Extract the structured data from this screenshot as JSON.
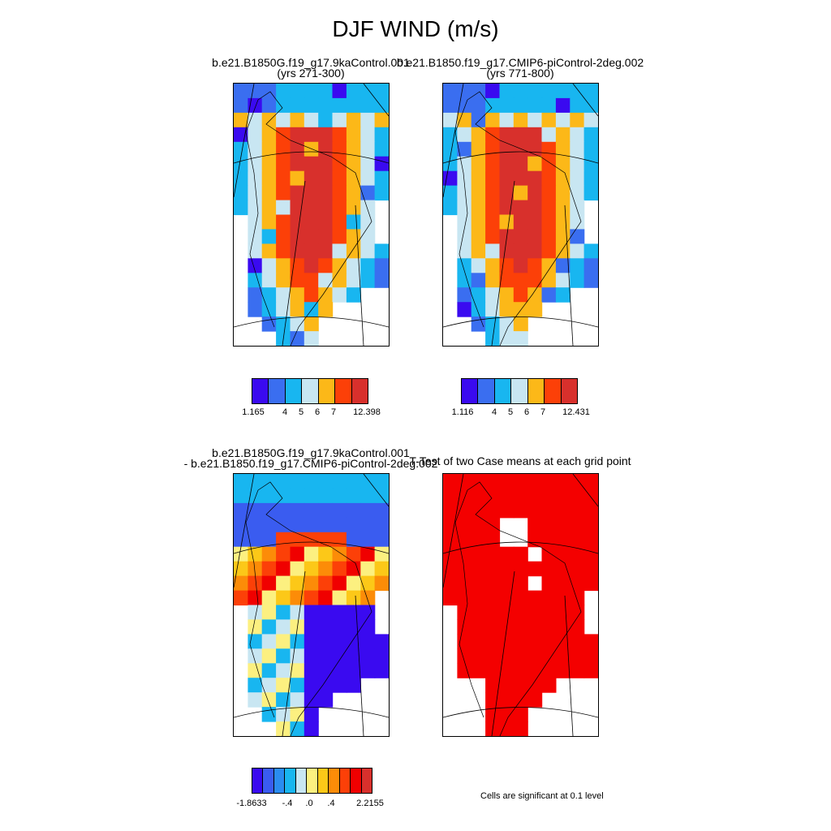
{
  "title": "DJF WIND (m/s)",
  "panels": {
    "case1": {
      "title_line1": "b.e21.B1850G.f19_g17.9kaControl.001",
      "title_line2": "(yrs 271-300)"
    },
    "case2": {
      "title_line1": "b.e21.B1850.f19_g17.CMIP6-piControl-2deg.002",
      "title_line2": "(yrs 771-800)"
    },
    "diff": {
      "title_line1": "b.e21.B1850G.f19_g17.9kaControl.001",
      "title_line2": "- b.e21.B1850.f19_g17.CMIP6-piControl-2deg.002"
    },
    "ttest": {
      "title_line1": "T-Test of two Case means at each grid point"
    }
  },
  "legends": {
    "case1": {
      "colors": [
        "#3a0af0",
        "#3a6ef0",
        "#18b6f0",
        "#c8e6f2",
        "#fcb818",
        "#fc4008",
        "#d8302c"
      ],
      "tick_labels": [
        "1.165",
        "4",
        "5",
        "6",
        "7",
        "12.398"
      ]
    },
    "case2": {
      "colors": [
        "#3a0af0",
        "#3a6ef0",
        "#18b6f0",
        "#c8e6f2",
        "#fcb818",
        "#fc4008",
        "#d8302c"
      ],
      "tick_labels": [
        "1.116",
        "4",
        "5",
        "6",
        "7",
        "12.431"
      ]
    },
    "diff": {
      "colors": [
        "#3a0af0",
        "#3a5cf0",
        "#2a8cf0",
        "#18b6f0",
        "#c8e6f2",
        "#fcf080",
        "#fcc818",
        "#fc8c08",
        "#fc4008",
        "#f00000",
        "#d8302c"
      ],
      "tick_labels": [
        "-1.8633",
        "-.4",
        ".0",
        ".4",
        "2.2155"
      ]
    }
  },
  "significance_note": "Cells are significant at 0.1 level",
  "colors": {
    "significant": "#f40000"
  }
}
